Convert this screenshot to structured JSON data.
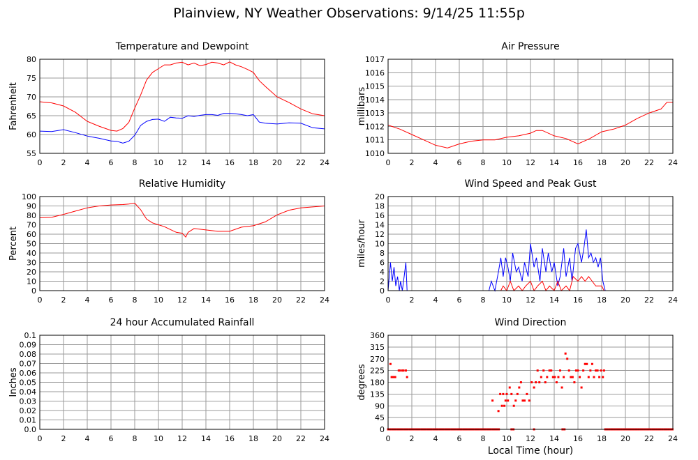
{
  "title": "Plainview, NY Weather Observations: 9/14/25 11:55p",
  "x_axis_label": "Local Time (hour)",
  "x_ticks": [
    "0",
    "2",
    "4",
    "6",
    "8",
    "10",
    "12",
    "14",
    "16",
    "18",
    "20",
    "22",
    "24"
  ],
  "colors": {
    "red": "#ff0000",
    "blue": "#0000ff",
    "grid": "#9a9a9a"
  },
  "chart_data": [
    {
      "id": "temperature",
      "type": "line",
      "title": "Temperature and Dewpoint",
      "xlabel": "",
      "ylabel": "Fahrenheit",
      "xlim": [
        0,
        24
      ],
      "ylim": [
        55,
        80
      ],
      "y_ticks": [
        "55",
        "60",
        "65",
        "70",
        "75",
        "80"
      ],
      "grid": true,
      "series": [
        {
          "color": "#ff0000",
          "style": "line",
          "x": [
            0,
            1,
            2,
            3,
            4,
            5,
            6,
            6.5,
            7,
            7.5,
            8,
            8.5,
            9,
            9.5,
            10,
            10.5,
            11,
            11.5,
            12,
            12.5,
            13,
            13.5,
            14,
            14.5,
            15,
            15.5,
            16,
            16.5,
            17,
            17.5,
            18,
            18.5,
            19,
            20,
            21,
            22,
            23,
            24
          ],
          "y": [
            68.7,
            68.4,
            67.6,
            65.9,
            63.5,
            62.2,
            61.1,
            60.9,
            61.6,
            63.2,
            67,
            70.5,
            74.5,
            76.5,
            77.5,
            78.5,
            78.5,
            79,
            79.2,
            78.5,
            79,
            78.3,
            78.6,
            79.2,
            79,
            78.5,
            79.3,
            78.5,
            78,
            77.3,
            76.5,
            74.3,
            72.8,
            70,
            68.5,
            66.8,
            65.5,
            65
          ]
        },
        {
          "color": "#0000ff",
          "style": "line",
          "x": [
            0,
            1,
            2,
            3,
            4,
            5,
            6,
            6.5,
            7,
            7.5,
            8,
            8.5,
            9,
            9.5,
            10,
            10.5,
            11,
            11.5,
            12,
            12.5,
            13,
            13.5,
            14,
            14.5,
            15,
            15.5,
            16,
            16.5,
            17,
            17.5,
            18,
            18.5,
            19,
            20,
            21,
            22,
            23,
            24
          ],
          "y": [
            60.9,
            60.8,
            61.3,
            60.5,
            59.6,
            59,
            58.3,
            58.2,
            57.7,
            58.2,
            59.8,
            62.4,
            63.5,
            64,
            64.1,
            63.5,
            64.6,
            64.4,
            64.3,
            65,
            64.8,
            65.1,
            65.3,
            65.3,
            65.1,
            65.6,
            65.6,
            65.5,
            65.3,
            65,
            65.3,
            63.3,
            63,
            62.8,
            63.1,
            63,
            61.8,
            61.5
          ]
        }
      ]
    },
    {
      "id": "pressure",
      "type": "line",
      "title": "Air Pressure",
      "xlabel": "",
      "ylabel": "millibars",
      "xlim": [
        0,
        24
      ],
      "ylim": [
        1010,
        1017
      ],
      "y_ticks": [
        "1010",
        "1011",
        "1012",
        "1013",
        "1014",
        "1015",
        "1016",
        "1017"
      ],
      "grid": true,
      "series": [
        {
          "color": "#ff0000",
          "style": "line",
          "x": [
            0,
            1,
            2,
            3,
            4,
            5,
            6,
            7,
            8,
            9,
            10,
            11,
            12,
            12.5,
            13,
            14,
            15,
            16,
            17,
            18,
            19,
            20,
            21,
            22,
            23,
            23.5,
            24
          ],
          "y": [
            1012.1,
            1011.8,
            1011.4,
            1011,
            1010.6,
            1010.4,
            1010.7,
            1010.9,
            1011,
            1011,
            1011.2,
            1011.3,
            1011.5,
            1011.7,
            1011.7,
            1011.3,
            1011.1,
            1010.7,
            1011.1,
            1011.6,
            1011.8,
            1012.1,
            1012.6,
            1013,
            1013.3,
            1013.8,
            1013.8
          ]
        }
      ]
    },
    {
      "id": "humidity",
      "type": "line",
      "title": "Relative Humidity",
      "xlabel": "",
      "ylabel": "Percent",
      "xlim": [
        0,
        24
      ],
      "ylim": [
        0,
        100
      ],
      "y_ticks": [
        "0",
        "10",
        "20",
        "30",
        "40",
        "50",
        "60",
        "70",
        "80",
        "90",
        "100"
      ],
      "grid": true,
      "series": [
        {
          "color": "#ff0000",
          "style": "line",
          "x": [
            0,
            1,
            2,
            3,
            4,
            5,
            6,
            7,
            7.5,
            8,
            8.5,
            9,
            9.5,
            10,
            10.5,
            11,
            11.5,
            12,
            12.3,
            12.5,
            13,
            14,
            15,
            16,
            17,
            18,
            19,
            20,
            21,
            22,
            23,
            24
          ],
          "y": [
            77.5,
            78,
            81,
            84.5,
            88,
            90,
            91,
            91.5,
            92,
            93,
            86,
            76,
            72,
            70,
            68,
            65,
            62,
            61,
            57,
            62,
            66,
            64.5,
            63,
            63,
            67.5,
            69,
            73,
            80.5,
            85.5,
            88,
            89,
            90
          ]
        }
      ]
    },
    {
      "id": "wind",
      "type": "line",
      "title": "Wind Speed and Peak Gust",
      "xlabel": "",
      "ylabel": "miles/hour",
      "xlim": [
        0,
        24
      ],
      "ylim": [
        0,
        20
      ],
      "y_ticks": [
        "0",
        "2",
        "4",
        "6",
        "8",
        "10",
        "12",
        "14",
        "16",
        "18",
        "20"
      ],
      "grid": true,
      "series": [
        {
          "color": "#0000ff",
          "style": "line",
          "x": [
            0,
            0.2,
            0.35,
            0.5,
            0.65,
            0.8,
            0.95,
            1.05,
            1.2,
            1.35,
            1.5,
            1.6,
            1.7,
            2,
            8.5,
            8.7,
            9,
            9.3,
            9.5,
            9.7,
            9.9,
            10.1,
            10.3,
            10.5,
            10.8,
            11,
            11.3,
            11.5,
            11.8,
            12,
            12.3,
            12.5,
            12.8,
            13,
            13.3,
            13.5,
            13.8,
            14,
            14.3,
            14.5,
            14.8,
            15,
            15.3,
            15.5,
            15.8,
            16,
            16.3,
            16.5,
            16.7,
            16.9,
            17.1,
            17.3,
            17.5,
            17.7,
            17.9,
            18.1,
            18.3,
            24
          ],
          "y": [
            0,
            6,
            2,
            5,
            1,
            3,
            0,
            2,
            0,
            3,
            6,
            0,
            0,
            0,
            0,
            2,
            0,
            4,
            7,
            3,
            7,
            5,
            2,
            8,
            4,
            5,
            2,
            6,
            3,
            10,
            5,
            7,
            2,
            9,
            4,
            8,
            4,
            6,
            1,
            3,
            9,
            3,
            7,
            2,
            9,
            10,
            6,
            9,
            13,
            7,
            8,
            6,
            7,
            5,
            7,
            2,
            0,
            0
          ]
        },
        {
          "color": "#ff0000",
          "style": "line",
          "x": [
            0,
            9.5,
            9.7,
            10,
            10.3,
            10.6,
            11,
            11.3,
            11.6,
            12,
            12.3,
            12.6,
            13,
            13.3,
            13.6,
            14,
            14.3,
            14.6,
            15,
            15.3,
            15.6,
            16,
            16.3,
            16.6,
            16.9,
            17.2,
            17.5,
            17.8,
            18,
            18.2,
            24
          ],
          "y": [
            0,
            0,
            1,
            0,
            2,
            0,
            1,
            0,
            1,
            2,
            0,
            1,
            2,
            0,
            1,
            0,
            2,
            0,
            1,
            0,
            3,
            2,
            3,
            2,
            3,
            2,
            1,
            1,
            1,
            0,
            0
          ]
        }
      ]
    },
    {
      "id": "rainfall",
      "type": "line",
      "title": "24 hour Accumulated Rainfall",
      "xlabel": "",
      "ylabel": "Inches",
      "xlim": [
        0,
        24
      ],
      "ylim": [
        0,
        0.1
      ],
      "y_ticks": [
        "0.0",
        "0.01",
        "0.02",
        "0.03",
        "0.04",
        "0.05",
        "0.06",
        "0.07",
        "0.08",
        "0.09",
        "0.1"
      ],
      "grid": true,
      "series": [
        {
          "color": "#ff0000",
          "style": "line",
          "x": [
            0,
            24
          ],
          "y": [
            0,
            0
          ]
        }
      ]
    },
    {
      "id": "direction",
      "type": "scatter",
      "title": "Wind Direction",
      "xlabel": "Local Time (hour)",
      "ylabel": "degrees",
      "xlim": [
        0,
        24
      ],
      "ylim": [
        0,
        360
      ],
      "y_ticks": [
        "0",
        "45",
        "90",
        "135",
        "180",
        "225",
        "270",
        "315",
        "360"
      ],
      "grid": true,
      "series": [
        {
          "color": "#ff0000",
          "style": "points",
          "x": [
            0.2,
            0.3,
            0.45,
            0.6,
            0.9,
            1.0,
            1.2,
            1.3,
            1.5,
            1.6,
            8.8,
            9.3,
            9.45,
            9.6,
            9.7,
            9.8,
            9.9,
            10.0,
            10.1,
            10.25,
            10.4,
            10.6,
            10.75,
            10.9,
            11.05,
            11.2,
            11.35,
            11.5,
            11.7,
            11.9,
            12.1,
            12.3,
            12.45,
            12.6,
            12.75,
            12.9,
            13.1,
            13.25,
            13.4,
            13.6,
            13.75,
            13.9,
            14.05,
            14.2,
            14.35,
            14.5,
            14.65,
            14.8,
            14.95,
            15.1,
            15.25,
            15.4,
            15.55,
            15.7,
            15.85,
            16.0,
            16.15,
            16.3,
            16.45,
            16.6,
            16.75,
            16.9,
            17.05,
            17.2,
            17.35,
            17.5,
            17.65,
            17.8,
            17.95,
            18.1,
            18.2
          ],
          "y": [
            250,
            200,
            200,
            200,
            225,
            225,
            225,
            225,
            225,
            200,
            110,
            70,
            135,
            90,
            135,
            90,
            110,
            135,
            110,
            160,
            135,
            90,
            110,
            135,
            160,
            180,
            110,
            110,
            135,
            110,
            180,
            160,
            180,
            225,
            180,
            200,
            225,
            180,
            200,
            225,
            225,
            200,
            200,
            180,
            200,
            225,
            160,
            200,
            290,
            270,
            225,
            200,
            200,
            180,
            225,
            225,
            200,
            160,
            225,
            250,
            250,
            200,
            225,
            250,
            200,
            225,
            225,
            200,
            225,
            200,
            225
          ]
        },
        {
          "color": "#ff0000",
          "style": "zeros",
          "ranges": [
            [
              0,
              9.4
            ],
            [
              10.4,
              10.6
            ],
            [
              12.3,
              12.4
            ],
            [
              14.7,
              14.9
            ],
            [
              18.3,
              24
            ]
          ]
        }
      ]
    }
  ]
}
